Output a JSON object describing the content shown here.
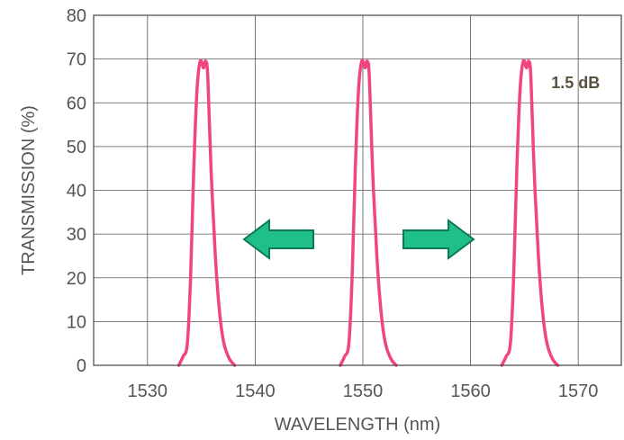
{
  "chart_data": {
    "type": "line",
    "xlabel": "WAVELENGTH (nm)",
    "ylabel": "TRANSMISSION (%)",
    "xlim": [
      1525,
      1574
    ],
    "ylim": [
      0,
      80
    ],
    "x_ticks": [
      1530,
      1540,
      1550,
      1560,
      1570
    ],
    "y_ticks": [
      0,
      10,
      20,
      30,
      40,
      50,
      60,
      70,
      80
    ],
    "grid": true,
    "series": [
      {
        "color": "#f0457e",
        "x": [
          1532.9,
          1533.3,
          1533.7,
          1534.0,
          1534.3,
          1534.6,
          1534.9,
          1535.2,
          1535.4,
          1535.6,
          1535.9,
          1536.3,
          1536.7,
          1537.1,
          1537.6,
          1538.1
        ],
        "y": [
          0,
          2,
          5,
          20,
          45,
          63,
          69.5,
          68,
          69.5,
          66,
          45,
          25,
          12,
          5,
          1.5,
          0
        ]
      },
      {
        "color": "#f0457e",
        "x": [
          1547.9,
          1548.3,
          1548.7,
          1549.0,
          1549.3,
          1549.6,
          1549.9,
          1550.2,
          1550.4,
          1550.6,
          1550.9,
          1551.3,
          1551.7,
          1552.1,
          1552.6,
          1553.1
        ],
        "y": [
          0,
          2,
          5,
          20,
          45,
          63,
          69.5,
          68,
          69.5,
          66,
          45,
          25,
          12,
          5,
          1.5,
          0
        ]
      },
      {
        "color": "#f0457e",
        "x": [
          1562.9,
          1563.3,
          1563.7,
          1564.0,
          1564.3,
          1564.6,
          1564.9,
          1565.2,
          1565.4,
          1565.6,
          1565.9,
          1566.3,
          1566.7,
          1567.1,
          1567.6,
          1568.1
        ],
        "y": [
          0,
          2,
          5,
          20,
          45,
          63,
          69.5,
          68,
          69.5,
          66,
          45,
          25,
          12,
          5,
          1.5,
          0
        ]
      }
    ],
    "annotations": [
      {
        "text": "1.5 dB",
        "x": 1567.5,
        "y": 65
      }
    ],
    "arrows": [
      {
        "direction": "left",
        "color": "#1fbf8a"
      },
      {
        "direction": "right",
        "color": "#1fbf8a"
      }
    ]
  }
}
